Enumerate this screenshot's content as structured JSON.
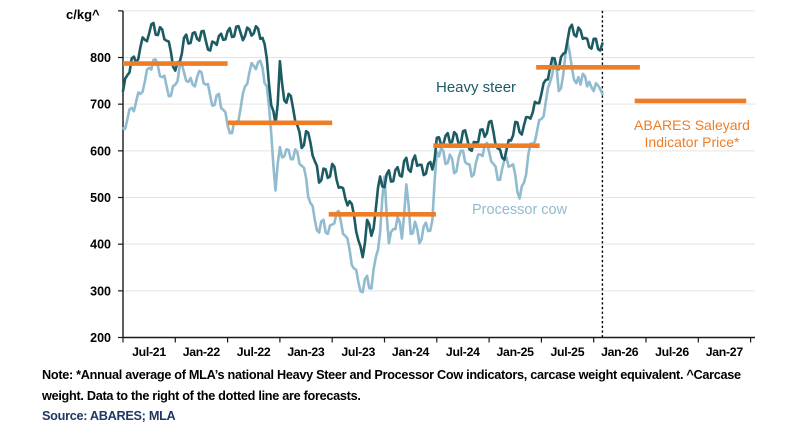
{
  "y_axis": {
    "unit": "c/kg^",
    "ticks": [
      200,
      300,
      400,
      500,
      600,
      700,
      800
    ]
  },
  "x_axis": {
    "tick_months": [
      0,
      6,
      12,
      18,
      24,
      30,
      36,
      42,
      48,
      54,
      60,
      66,
      72
    ],
    "labels": [
      "Jul-21",
      "Jan-22",
      "Jul-22",
      "Jan-23",
      "Jul-23",
      "Jan-24",
      "Jul-24",
      "Jan-25",
      "Jul-25",
      "Jan-26",
      "Jul-26",
      "Jan-27"
    ]
  },
  "legend": {
    "steer": "Heavy steer",
    "cow": "Processor cow"
  },
  "annotation": {
    "line1": "ABARES Saleyard",
    "line2": "Indicator Price*"
  },
  "note": {
    "line1": "Note: *Annual average of MLA’s national Heavy Steer and Processor Cow indicators, carcase weight equivalent. ^Carcase",
    "line2": "weight. Data to the right of the dotted line are forecasts."
  },
  "source": "Source: ABARES; MLA",
  "colors": {
    "steer": "#1d5b63",
    "cow": "#91bbce",
    "indicator": "#ee7d27",
    "grid": "#e3e3e3",
    "axis": "#1a1a1a",
    "divider": "#000000",
    "source_text": "#1f3864"
  },
  "chart_data": {
    "type": "line",
    "x_unit": "months since Jul-2021",
    "ylim": [
      200,
      900
    ],
    "m_start": 0,
    "m_step": 0.25,
    "series": [
      {
        "name": "Processor cow",
        "values": [
          648,
          647,
          668,
          689,
          692,
          685,
          705,
          725,
          722,
          727,
          748,
          774,
          778,
          774,
          795,
          796,
          782,
          760,
          758,
          761,
          738,
          717,
          718,
          739,
          742,
          749,
          782,
          787,
          768,
          750,
          748,
          756,
          742,
          738,
          758,
          771,
          768,
          745,
          742,
          743,
          718,
          697,
          698,
          719,
          722,
          692,
          688,
          683,
          655,
          638,
          638,
          661,
          662,
          665,
          692,
          723,
          738,
          743,
          768,
          788,
          782,
          775,
          790,
          793,
          778,
          745,
          738,
          695,
          638,
          568,
          515,
          572,
          608,
          586,
          588,
          603,
          602,
          582,
          582,
          603,
          598,
          572,
          568,
          564,
          542,
          502,
          488,
          482,
          452,
          430,
          425,
          449,
          452,
          425,
          422,
          440,
          442,
          445,
          468,
          471,
          448,
          422,
          418,
          412,
          388,
          355,
          348,
          345,
          318,
          299,
          297,
          325,
          332,
          306,
          305,
          346,
          372,
          388,
          425,
          498,
          545,
          462,
          402,
          426,
          432,
          432,
          458,
          447,
          412,
          462,
          528,
          486,
          422,
          423,
          448,
          433,
          402,
          410,
          438,
          446,
          428,
          429,
          452,
          534,
          598,
          588,
          605,
          600,
          572,
          574,
          592,
          583,
          552,
          556,
          585,
          600,
          600,
          576,
          572,
          571,
          545,
          549,
          575,
          592,
          592,
          589,
          612,
          617,
          598,
          577,
          572,
          566,
          538,
          538,
          562,
          581,
          585,
          566,
          568,
          571,
          548,
          512,
          498,
          524,
          532,
          549,
          592,
          615,
          615,
          620,
          642,
          666,
          668,
          674,
          705,
          734,
          748,
          763,
          798,
          776,
          728,
          734,
          762,
          806,
          832,
          810,
          778,
          752,
          745,
          758,
          742,
          765,
          760,
          738,
          748,
          736,
          728,
          745,
          740,
          732,
          722
        ]
      },
      {
        "name": "Heavy steer",
        "values": [
          728,
          755,
          762,
          768,
          798,
          802,
          788,
          797,
          822,
          843,
          838,
          835,
          852,
          871,
          874,
          849,
          848,
          865,
          860,
          839,
          836,
          834,
          812,
          780,
          772,
          790,
          790,
          808,
          842,
          849,
          830,
          831,
          852,
          854,
          840,
          836,
          856,
          857,
          836,
          817,
          815,
          834,
          832,
          827,
          846,
          851,
          838,
          839,
          856,
          863,
          844,
          845,
          866,
          867,
          852,
          837,
          846,
          864,
          860,
          847,
          852,
          867,
          862,
          840,
          842,
          829,
          798,
          743,
          698,
          685,
          658,
          700,
          792,
          744,
          708,
          703,
          722,
          718,
          692,
          664,
          655,
          640,
          606,
          612,
          642,
          639,
          618,
          590,
          578,
          568,
          532,
          537,
          562,
          560,
          542,
          545,
          572,
          566,
          538,
          521,
          522,
          520,
          498,
          483,
          492,
          486,
          462,
          427,
          408,
          395,
          372,
          402,
          452,
          443,
          418,
          434,
          475,
          521,
          545,
          524,
          522,
          550,
          558,
          534,
          535,
          559,
          565,
          547,
          545,
          578,
          585,
          560,
          555,
          580,
          590,
          568,
          570,
          570,
          548,
          551,
          572,
          576,
          560,
          582,
          628,
          629,
          612,
          614,
          632,
          638,
          618,
          619,
          640,
          635,
          615,
          616,
          642,
          644,
          625,
          603,
          600,
          619,
          618,
          619,
          645,
          646,
          630,
          638,
          662,
          664,
          640,
          612,
          605,
          603,
          585,
          581,
          602,
          623,
          622,
          633,
          662,
          661,
          640,
          635,
          655,
          672,
          672,
          669,
          682,
          705,
          702,
          702,
          722,
          745,
          752,
          753,
          778,
          799,
          798,
          777,
          775,
          801,
          808,
          811,
          838,
          863,
          870,
          849,
          845,
          864,
          858,
          840,
          842,
          840,
          822,
          819,
          840,
          840,
          818,
          815,
          830
        ]
      }
    ],
    "indicator_segments": [
      {
        "value": 787,
        "m_start": 0,
        "m_end": 12
      },
      {
        "value": 660,
        "m_start": 12.05,
        "m_end": 24
      },
      {
        "value": 464,
        "m_start": 23.6,
        "m_end": 35.9
      },
      {
        "value": 611,
        "m_start": 35.6,
        "m_end": 47.8
      },
      {
        "value": 779,
        "m_start": 47.4,
        "m_end": 59.3
      },
      {
        "value": 707,
        "m_start": 58.7,
        "m_end": 71.5
      }
    ],
    "forecast_divider_m": 55,
    "legend_position": "inline-labels"
  }
}
